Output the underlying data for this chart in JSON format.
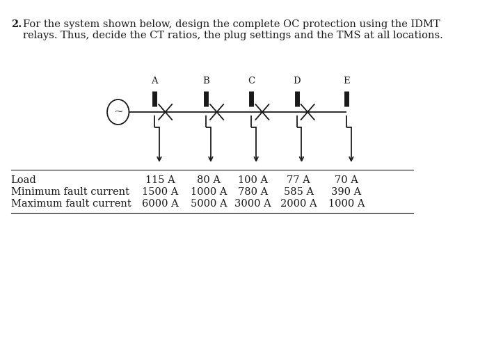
{
  "title_number": "2.",
  "title_text_line1": "For the system shown below, design the complete OC protection using the IDMT",
  "title_text_line2": "relays. Thus, decide the CT ratios, the plug settings and the TMS at all locations.",
  "bus_labels": [
    "A",
    "B",
    "C",
    "D",
    "E"
  ],
  "has_x": [
    true,
    true,
    true,
    true,
    false
  ],
  "row_labels": [
    "Load",
    "Minimum fault current",
    "Maximum fault current"
  ],
  "table_data": [
    [
      "115 A",
      "80 A",
      "100 A",
      "77 A",
      "70 A"
    ],
    [
      "1500 A",
      "1000 A",
      "780 A",
      "585 A",
      "390 A"
    ],
    [
      "6000 A",
      "5000 A",
      "3000 A",
      "2000 A",
      "1000 A"
    ]
  ],
  "background_color": "#ffffff",
  "line_color": "#1a1a1a",
  "text_color": "#1a1a1a",
  "font_size": 10.5,
  "title_font_size": 10.5
}
